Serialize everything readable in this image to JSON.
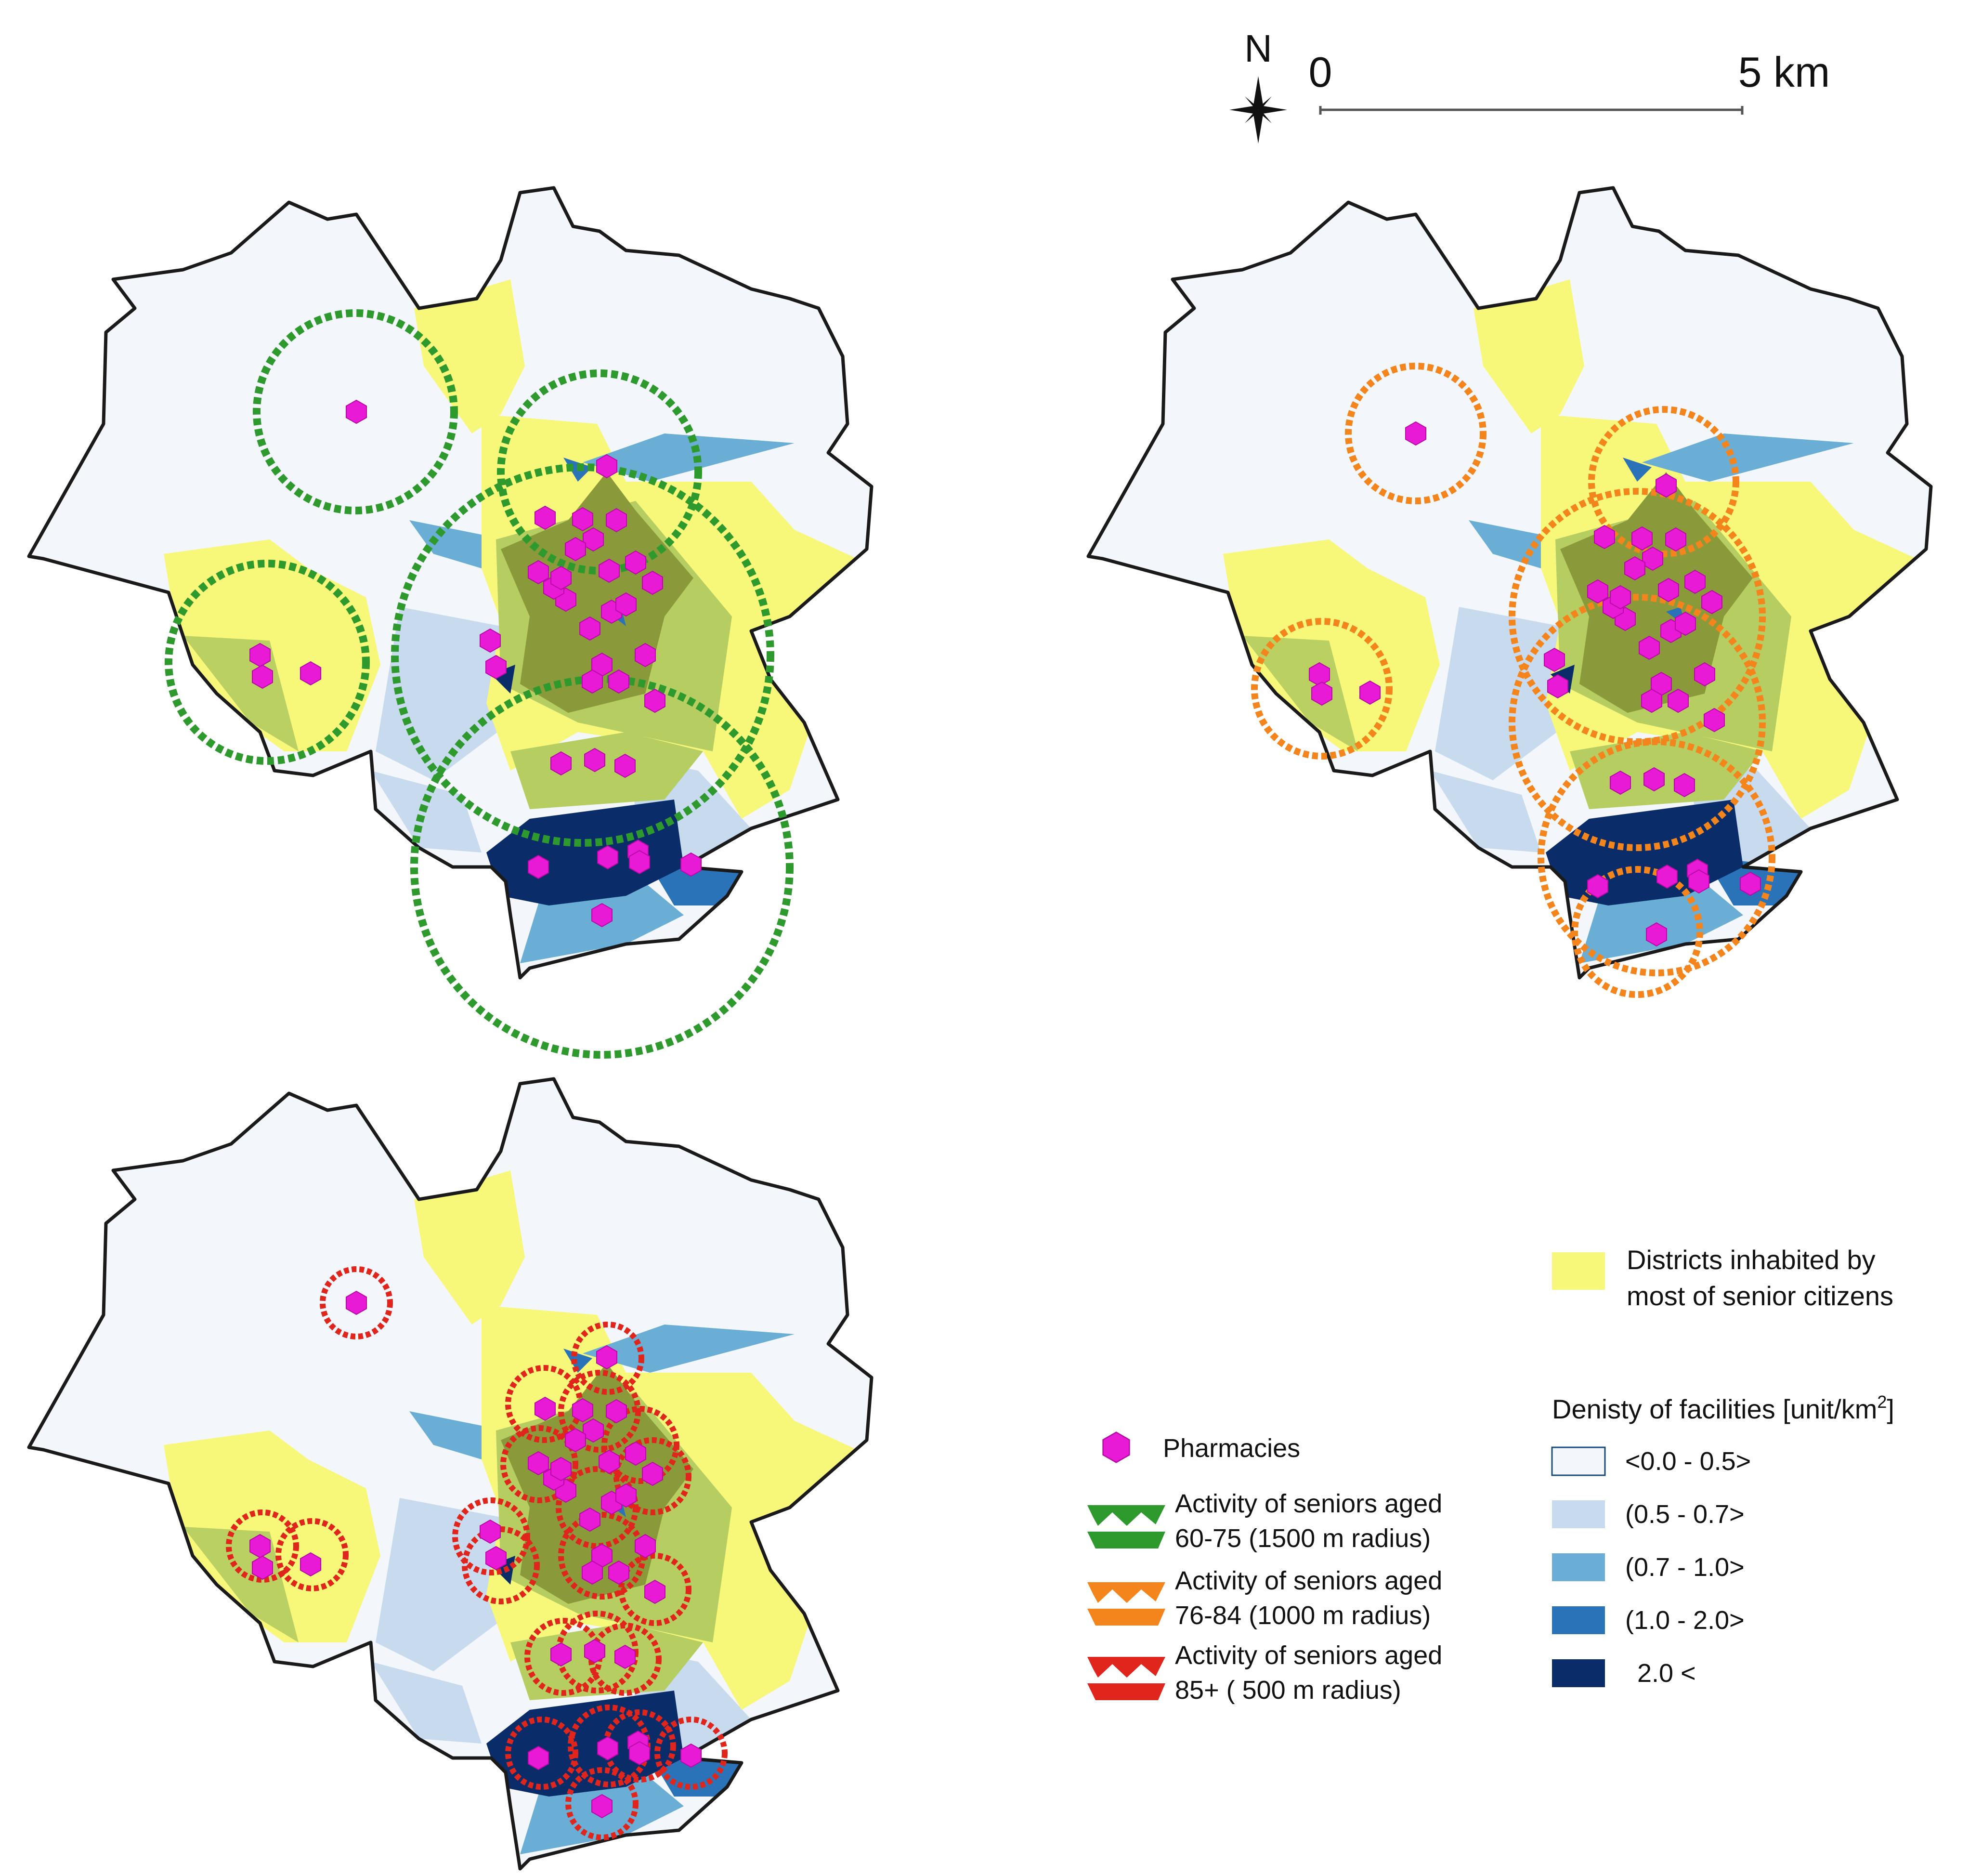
{
  "colors": {
    "boundary": "#1a1a1a",
    "senior_districts": "#f7f77a",
    "overlap_green": "#8a9a3a",
    "pharmacy": "#e81ad6",
    "pharmacy_stroke": "#b80aa6",
    "buffer_60_75": "#2e9a2e",
    "buffer_76_84": "#f4841c",
    "buffer_85_plus": "#e0251c",
    "density": [
      "#f3f7fc",
      "#c8dbee",
      "#6aaed6",
      "#2a73b8",
      "#0a2d6a"
    ]
  },
  "scale_bar": {
    "north": "N",
    "zero": "0",
    "end": "5 km"
  },
  "legend": {
    "senior_districts": {
      "line1": "Districts inhabited by",
      "line2": "most of senior citizens"
    },
    "pharmacies": "Pharmacies",
    "activity": [
      {
        "line1": "Activity of seniors aged",
        "line2": "60-75 (1500 m radius)",
        "color": "#2e9a2e",
        "icon": "green-buffer-icon"
      },
      {
        "line1": "Activity of seniors aged",
        "line2": "76-84 (1000 m radius)",
        "color": "#f4841c",
        "icon": "orange-buffer-icon"
      },
      {
        "line1": "Activity of seniors aged",
        "line2": "85+ ( 500 m radius)",
        "color": "#e0251c",
        "icon": "red-buffer-icon"
      }
    ],
    "density_title": "Denisty of facilities [unit/km",
    "density_title_sup": "2",
    "density_title_end": "]",
    "density_classes": [
      "<0.0 - 0.5>",
      "(0.5 - 0.7>",
      "(0.7 - 1.0>",
      "(1.0 - 2.0>",
      "2.0 <"
    ]
  },
  "maps": [
    {
      "id": "map-60-75",
      "buffer": "60-75",
      "radius_m": 1500
    },
    {
      "id": "map-76-84",
      "buffer": "76-84",
      "radius_m": 1000
    },
    {
      "id": "map-85-plus",
      "buffer": "85+",
      "radius_m": 500
    }
  ],
  "scale_km": 5
}
